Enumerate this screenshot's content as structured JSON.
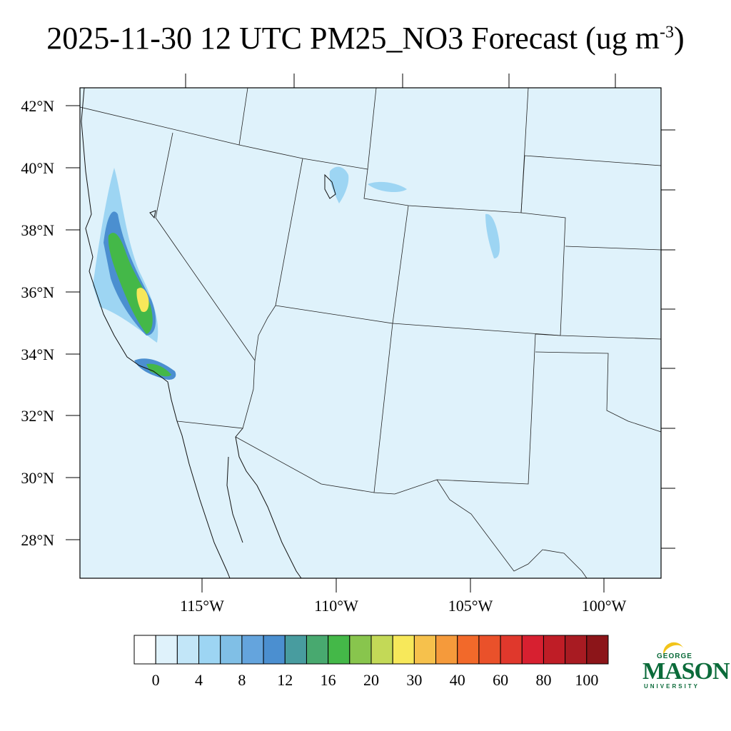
{
  "title": {
    "text": "2025-11-30 12 UTC PM25_NO3 Forecast (ug m",
    "superscript": "-3",
    "suffix": ")"
  },
  "map": {
    "lat_labels": [
      "42°N",
      "40°N",
      "38°N",
      "36°N",
      "34°N",
      "32°N",
      "30°N",
      "28°N"
    ],
    "lon_labels": [
      "115°W",
      "110°W",
      "105°W",
      "100°W"
    ],
    "background_color": "#dff2fb",
    "field_description_colors": {
      "low": "#dff2fb",
      "moderate": "#9dd5f3",
      "elevated": "#4b8fd0",
      "high": "#44b848",
      "peak": "#f7e85a"
    }
  },
  "colorbar": {
    "labels": [
      "0",
      "4",
      "8",
      "12",
      "16",
      "20",
      "30",
      "40",
      "60",
      "80",
      "100"
    ],
    "colors": [
      "#ffffff",
      "#dff2fb",
      "#c2e6f8",
      "#9dd5f3",
      "#80bfe6",
      "#64a4dd",
      "#4b8fd0",
      "#489c9f",
      "#48a96f",
      "#44b848",
      "#88c54d",
      "#c3d957",
      "#f7e85a",
      "#f6c14c",
      "#f59a3b",
      "#f2692a",
      "#ea512a",
      "#e0382c",
      "#d72030",
      "#bf1d26",
      "#a81b22",
      "#8c1519"
    ]
  },
  "logo": {
    "line1": "GEORGE",
    "line2": "MASON",
    "line3": "UNIVERSITY"
  }
}
